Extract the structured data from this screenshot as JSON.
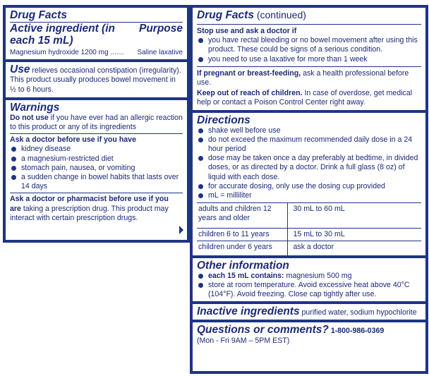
{
  "left": {
    "title": "Drug Facts",
    "active_heading": "Active ingredient (in each 15 mL)",
    "purpose_heading": "Purpose",
    "active_line": "Magnesium hydroxide 1200 mg .......",
    "purpose_value": "Saline laxative",
    "use_heading": "Use",
    "use_text": " relieves occasional constipation (irregularity). This product usually produces bowel movement in ½ to 6 hours.",
    "warnings_heading": "Warnings",
    "do_not_use_bold": "Do not use",
    "do_not_use_text": " if you have ever had an allergic reaction to this product or any of its ingredients",
    "ask_doctor_heading": "Ask a doctor before use if you have",
    "ask_doctor_items": [
      "kidney disease",
      "a magnesium-restricted diet",
      "stomach pain, nausea, or vomiting",
      "a sudden change in bowel habits that lasts over 14 days"
    ],
    "ask_pharm_bold": "Ask a doctor or pharmacist before use if you are",
    "ask_pharm_text": " taking a prescription drug.  This product may interact with certain prescription drugs."
  },
  "right": {
    "title": "Drug Facts",
    "title_suffix": " (continued)",
    "stop_heading": "Stop use and ask a doctor if",
    "stop_items": [
      "you have rectal bleeding or no bowel movement after using this product.  These could be signs of a serious condition.",
      "you need to use a laxative for more than 1 week"
    ],
    "pregnant_bold": "If pregnant or breast-feeding,",
    "pregnant_text": " ask a health professional before use.",
    "keep_bold": "Keep out of reach of children.",
    "keep_text": " In case of overdose, get medical help or contact a Poison Control Center right away.",
    "directions_heading": "Directions",
    "directions_items": [
      "shake well before use",
      "do not exceed the maximum recommended daily dose in a 24 hour period",
      "dose may be taken once a day preferably at bedtime, in divided doses, or as directed by a doctor.  Drink a full glass (8 oz) of liquid with each dose.",
      "for accurate dosing, only use the dosing cup provided",
      "mL = milliliter"
    ],
    "dose_table": [
      [
        "adults and children 12 years and older",
        "30 mL to 60 mL"
      ],
      [
        "children 6 to 11 years",
        "15 mL to 30 mL"
      ],
      [
        "children under 6 years",
        "ask a doctor"
      ]
    ],
    "other_heading": "Other information",
    "other_item1_bold": "each 15 mL contains:",
    "other_item1_text": "  magnesium 500 mg",
    "other_item2": "store at room temperature.  Avoid excessive heat above 40°C (104°F).  Avoid freezing.  Close cap tightly after use.",
    "inactive_heading": "Inactive ingredients",
    "inactive_text": " purified water, sodium hypochlorite",
    "questions_heading": "Questions or comments?",
    "phone": " 1-800-986-0369",
    "hours": "(Mon - Fri 9AM – 5PM EST)"
  }
}
